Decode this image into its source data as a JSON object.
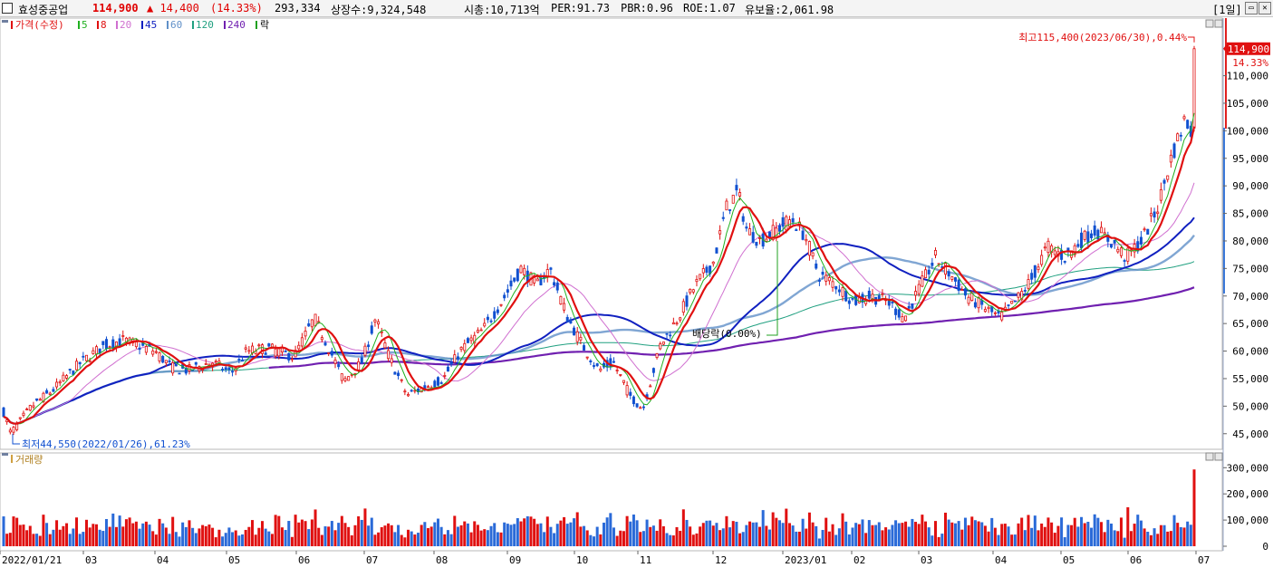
{
  "header": {
    "stock_name": "효성중공업",
    "price": "114,900",
    "change": "▲ 14,400",
    "change_pct": "(14.33%)",
    "volume": "293,334",
    "shares": "상장수:9,324,548",
    "market_cap": "시총:10,713억",
    "per": "PER:91.73",
    "pbr": "PBR:0.96",
    "roe": "ROE:1.07",
    "float": "유보율:2,061.98",
    "period": "[1일]"
  },
  "price_legend": {
    "price_label": "가격(수정)",
    "ma": [
      {
        "label": "5",
        "color": "#20b020"
      },
      {
        "label": "8",
        "color": "#e01010"
      },
      {
        "label": "20",
        "color": "#d070d0"
      },
      {
        "label": "45",
        "color": "#1020c0"
      },
      {
        "label": "60",
        "color": "#6090c8"
      },
      {
        "label": "120",
        "color": "#20a080"
      },
      {
        "label": "240",
        "color": "#7020b0"
      }
    ],
    "rak": "락"
  },
  "volume_legend": {
    "label": "거래량"
  },
  "annotations": {
    "high": "최고115,400(2023/06/30),0.44%",
    "low": "최저44,550(2022/01/26),61.23%",
    "dividend": "배당락(0.00%)",
    "last_price": "114,900",
    "last_pct": "14.33%"
  },
  "chart_data": {
    "type": "candlestick",
    "x_labels": [
      "2022/01/21",
      "03",
      "04",
      "05",
      "06",
      "07",
      "08",
      "09",
      "10",
      "11",
      "12",
      "2023/01",
      "02",
      "03",
      "04",
      "05",
      "06",
      "07"
    ],
    "price_ylim": [
      42000,
      118000
    ],
    "price_ticks": [
      "45,000",
      "50,000",
      "55,000",
      "60,000",
      "65,000",
      "70,000",
      "75,000",
      "80,000",
      "85,000",
      "90,000",
      "95,000",
      "100,000",
      "105,000",
      "110,000"
    ],
    "volume_ticks": [
      "0",
      "100,000",
      "200,000",
      "300,000"
    ],
    "price_anchors": [
      [
        "2022/01/21",
        51000
      ],
      [
        "2022/01/26",
        45000
      ],
      [
        "2022/02/05",
        50000
      ],
      [
        "2022/02/15",
        53000
      ],
      [
        "2022/02/28",
        58000
      ],
      [
        "2022/03/10",
        61000
      ],
      [
        "2022/03/18",
        62000
      ],
      [
        "2022/03/25",
        61000
      ],
      [
        "2022/04/01",
        60000
      ],
      [
        "2022/04/08",
        57000
      ],
      [
        "2022/04/15",
        56500
      ],
      [
        "2022/04/25",
        58000
      ],
      [
        "2022/05/03",
        56000
      ],
      [
        "2022/05/10",
        60000
      ],
      [
        "2022/05/20",
        60500
      ],
      [
        "2022/05/31",
        59000
      ],
      [
        "2022/06/09",
        66000
      ],
      [
        "2022/06/16",
        60000
      ],
      [
        "2022/06/22",
        54500
      ],
      [
        "2022/06/30",
        58000
      ],
      [
        "2022/07/06",
        66000
      ],
      [
        "2022/07/12",
        59000
      ],
      [
        "2022/07/20",
        52000
      ],
      [
        "2022/07/28",
        53500
      ],
      [
        "2022/08/05",
        55000
      ],
      [
        "2022/08/12",
        60000
      ],
      [
        "2022/08/22",
        64000
      ],
      [
        "2022/08/31",
        70000
      ],
      [
        "2022/09/07",
        75000
      ],
      [
        "2022/09/14",
        72000
      ],
      [
        "2022/09/20",
        75000
      ],
      [
        "2022/09/28",
        66000
      ],
      [
        "2022/10/05",
        61000
      ],
      [
        "2022/10/13",
        56500
      ],
      [
        "2022/10/20",
        58000
      ],
      [
        "2022/10/28",
        52000
      ],
      [
        "2022/11/03",
        49500
      ],
      [
        "2022/11/10",
        61000
      ],
      [
        "2022/11/17",
        66000
      ],
      [
        "2022/11/24",
        72000
      ],
      [
        "2022/12/01",
        76000
      ],
      [
        "2022/12/07",
        86000
      ],
      [
        "2022/12/12",
        89000
      ],
      [
        "2022/12/16",
        82000
      ],
      [
        "2022/12/22",
        80000
      ],
      [
        "2022/12/29",
        82000
      ],
      [
        "2023/01/05",
        84000
      ],
      [
        "2023/01/11",
        81000
      ],
      [
        "2023/01/17",
        74000
      ],
      [
        "2023/01/25",
        72000
      ],
      [
        "2023/02/02",
        69000
      ],
      [
        "2023/02/09",
        70000
      ],
      [
        "2023/02/16",
        69000
      ],
      [
        "2023/02/23",
        66000
      ],
      [
        "2023/03/02",
        72000
      ],
      [
        "2023/03/08",
        77000
      ],
      [
        "2023/03/14",
        74000
      ],
      [
        "2023/03/21",
        70000
      ],
      [
        "2023/03/28",
        68000
      ],
      [
        "2023/04/04",
        66000
      ],
      [
        "2023/04/11",
        69000
      ],
      [
        "2023/04/18",
        73000
      ],
      [
        "2023/04/25",
        79000
      ],
      [
        "2023/05/03",
        77000
      ],
      [
        "2023/05/10",
        80000
      ],
      [
        "2023/05/17",
        82000
      ],
      [
        "2023/05/24",
        80000
      ],
      [
        "2023/05/31",
        77000
      ],
      [
        "2023/06/07",
        80000
      ],
      [
        "2023/06/14",
        86000
      ],
      [
        "2023/06/20",
        95000
      ],
      [
        "2023/06/26",
        102000
      ],
      [
        "2023/06/29",
        100500
      ],
      [
        "2023/06/30",
        114900
      ]
    ],
    "last": {
      "date": "2023/06/30",
      "close": 114900,
      "high": 115400,
      "volume": 293334
    }
  }
}
